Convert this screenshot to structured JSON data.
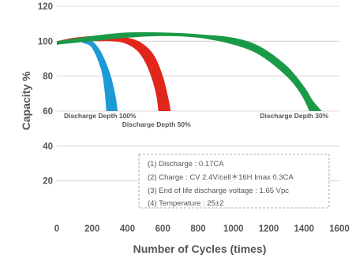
{
  "colors": {
    "depth_100": "#1e9bd7",
    "depth_50": "#e1261c",
    "depth_30": "#1a9a46",
    "text": "#555555",
    "grid": "#cccccc"
  },
  "chart_data": {
    "type": "area",
    "title": "",
    "xlabel": "Number of Cycles (times)",
    "ylabel": "Capacity %",
    "xlim": [
      0,
      1600
    ],
    "ylim": [
      0,
      120
    ],
    "x_ticks": [
      "0",
      "200",
      "400",
      "600",
      "800",
      "1000",
      "1200",
      "1400",
      "1600"
    ],
    "y_ticks": [
      "20",
      "40",
      "60",
      "80",
      "100",
      "120"
    ],
    "grid": "horizontal",
    "series": [
      {
        "name": "Discharge Depth 100%",
        "color_key": "depth_100",
        "upper": [
          [
            0,
            100
          ],
          [
            50,
            101
          ],
          [
            100,
            102
          ],
          [
            150,
            102
          ],
          [
            200,
            100
          ],
          [
            250,
            94
          ],
          [
            300,
            82
          ],
          [
            330,
            70
          ],
          [
            345,
            60
          ]
        ],
        "lower": [
          [
            0,
            98
          ],
          [
            50,
            99
          ],
          [
            100,
            100
          ],
          [
            150,
            99
          ],
          [
            200,
            96
          ],
          [
            250,
            84
          ],
          [
            270,
            72
          ],
          [
            280,
            60
          ]
        ]
      },
      {
        "name": "Discharge Depth 50%",
        "color_key": "depth_50",
        "upper": [
          [
            0,
            100
          ],
          [
            100,
            102
          ],
          [
            200,
            103
          ],
          [
            300,
            103
          ],
          [
            400,
            102
          ],
          [
            480,
            99
          ],
          [
            550,
            92
          ],
          [
            600,
            80
          ],
          [
            630,
            68
          ],
          [
            645,
            60
          ]
        ],
        "lower": [
          [
            0,
            98
          ],
          [
            100,
            100
          ],
          [
            200,
            100
          ],
          [
            300,
            100
          ],
          [
            380,
            99
          ],
          [
            450,
            95
          ],
          [
            500,
            88
          ],
          [
            540,
            78
          ],
          [
            565,
            68
          ],
          [
            575,
            60
          ]
        ]
      },
      {
        "name": "Discharge Depth 30%",
        "color_key": "depth_30",
        "upper": [
          [
            0,
            100
          ],
          [
            200,
            103
          ],
          [
            400,
            105
          ],
          [
            600,
            105
          ],
          [
            800,
            104
          ],
          [
            1000,
            102
          ],
          [
            1150,
            97
          ],
          [
            1300,
            86
          ],
          [
            1400,
            74
          ],
          [
            1450,
            66
          ],
          [
            1500,
            60
          ]
        ],
        "lower": [
          [
            0,
            98
          ],
          [
            200,
            100
          ],
          [
            400,
            102
          ],
          [
            600,
            103
          ],
          [
            800,
            102
          ],
          [
            1000,
            98
          ],
          [
            1150,
            92
          ],
          [
            1300,
            80
          ],
          [
            1380,
            70
          ],
          [
            1430,
            60
          ]
        ]
      }
    ],
    "annotations": [
      {
        "text": "Discharge Depth 100%",
        "x": 40,
        "y": 56
      },
      {
        "text": "Discharge Depth 50%",
        "x": 370,
        "y": 51
      },
      {
        "text": "Discharge Depth 30%",
        "x": 1150,
        "y": 56
      }
    ],
    "notes": [
      "(1) Discharge : 0.17CA",
      "(2) Charge : CV 2.4V/cell＊16H Imax 0.3CA",
      "(3) End of life discharge voltage : 1.65 Vpc",
      "(4) Temperature : 25±2"
    ]
  }
}
